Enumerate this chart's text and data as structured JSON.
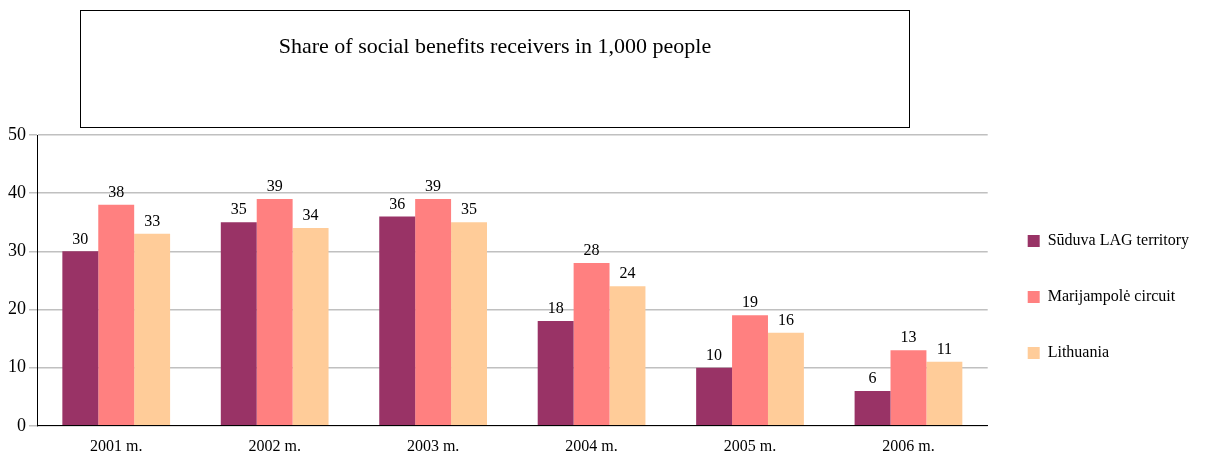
{
  "chart_data": {
    "type": "bar",
    "title": "Share of social benefits receivers in 1,000 people",
    "categories": [
      "2001 m.",
      "2002 m.",
      "2003 m.",
      "2004 m.",
      "2005 m.",
      "2006 m."
    ],
    "series": [
      {
        "name": "Sūduva LAG territory",
        "color": "#993366",
        "values": [
          30,
          35,
          36,
          18,
          10,
          6
        ]
      },
      {
        "name": "Marijampolė circuit",
        "color": "#ff8080",
        "values": [
          38,
          39,
          39,
          28,
          19,
          13
        ]
      },
      {
        "name": "Lithuania",
        "color": "#ffcc99",
        "values": [
          33,
          34,
          35,
          24,
          16,
          11
        ]
      }
    ],
    "ylim": [
      0,
      50
    ],
    "yticks": [
      0,
      10,
      20,
      30,
      40,
      50
    ],
    "grid": "y",
    "legend": "right",
    "data_labels": true
  }
}
